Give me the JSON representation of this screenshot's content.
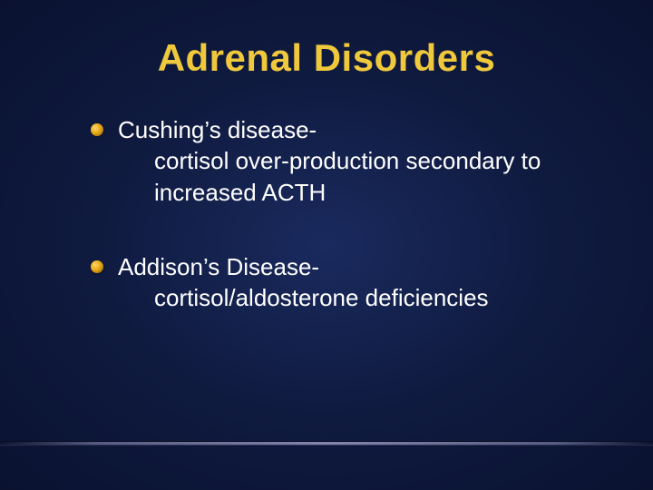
{
  "slide": {
    "title": "Adrenal Disorders",
    "title_color": "#f0c83c",
    "title_fontsize": 42,
    "title_fontweight": 900,
    "background_gradient": [
      "#1a2a5e",
      "#0f1a3f",
      "#0a1230"
    ],
    "body_color": "#ffffff",
    "body_fontsize": 26,
    "bullet_color_gradient": [
      "#ffd966",
      "#e6a817",
      "#8a5a0a"
    ],
    "bullets": [
      {
        "lead": "Cushing’s disease-",
        "sub1": "cortisol over-production secondary to",
        "sub2": "increased ACTH"
      },
      {
        "lead": "Addison’s Disease-",
        "sub1": "cortisol/aldosterone deficiencies",
        "sub2": ""
      }
    ],
    "divider_color": "rgba(160,160,200,0.7)"
  }
}
